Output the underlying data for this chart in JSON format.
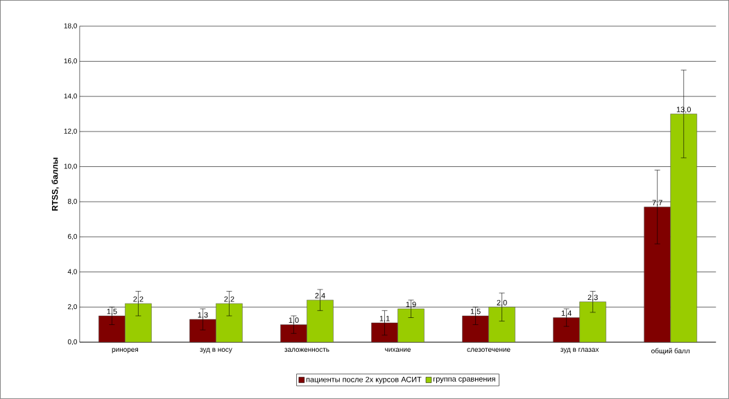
{
  "chart_data": {
    "type": "bar",
    "ylabel": "RTSS, баллы",
    "categories": [
      "ринорея",
      "зуд в носу",
      "заложенность",
      "чихание",
      "слезотечение",
      "зуд в глазах",
      "общий балл"
    ],
    "series": [
      {
        "name": "пациенты после 2х курсов АСИТ",
        "color": "#800000",
        "values": [
          1.5,
          1.3,
          1.0,
          1.1,
          1.5,
          1.4,
          7.7
        ],
        "errors": [
          0.5,
          0.6,
          0.5,
          0.7,
          0.5,
          0.5,
          2.1
        ],
        "value_labels": [
          "1,5",
          "1,3",
          "1,0",
          "1,1",
          "1,5",
          "1,4",
          "7,7"
        ]
      },
      {
        "name": "группа сравнения",
        "color": "#99cc00",
        "values": [
          2.2,
          2.2,
          2.4,
          1.9,
          2.0,
          2.3,
          13.0
        ],
        "errors": [
          0.7,
          0.7,
          0.6,
          0.5,
          0.8,
          0.6,
          2.5
        ],
        "value_labels": [
          "2,2",
          "2,2",
          "2,4",
          "1,9",
          "2,0",
          "2,3",
          "13,0"
        ]
      }
    ],
    "ylim": [
      0,
      18
    ],
    "yticks": [
      {
        "value": 0,
        "label": "0,0"
      },
      {
        "value": 2,
        "label": "2,0"
      },
      {
        "value": 4,
        "label": "4,0"
      },
      {
        "value": 6,
        "label": "6,0"
      },
      {
        "value": 8,
        "label": "8,0"
      },
      {
        "value": 10,
        "label": "10,0"
      },
      {
        "value": 12,
        "label": "12,0"
      },
      {
        "value": 14,
        "label": "14,0"
      },
      {
        "value": 16,
        "label": "16,0"
      },
      {
        "value": 18,
        "label": "18,0"
      }
    ],
    "grid": "y",
    "legend": "bottom"
  }
}
